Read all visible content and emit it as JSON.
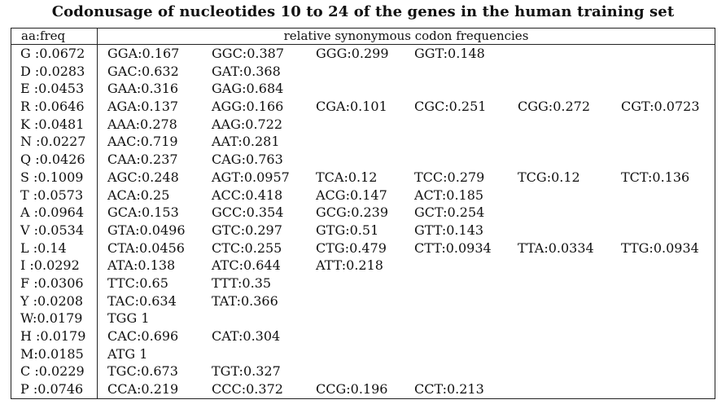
{
  "title": "Codonusage of nucleotides 10 to 24 of the genes in the human training set",
  "headers": {
    "left": "aa:freq",
    "right": "relative synonymous codon frequencies"
  },
  "rows": [
    {
      "aa": "G :0.0672",
      "codons": [
        "GGA:0.167",
        "GGC:0.387",
        "GGG:0.299",
        "GGT:0.148"
      ]
    },
    {
      "aa": "D :0.0283",
      "codons": [
        "GAC:0.632",
        "GAT:0.368"
      ]
    },
    {
      "aa": "E :0.0453",
      "codons": [
        "GAA:0.316",
        "GAG:0.684"
      ]
    },
    {
      "aa": "R :0.0646",
      "codons": [
        "AGA:0.137",
        "AGG:0.166",
        "CGA:0.101",
        "CGC:0.251",
        "CGG:0.272",
        "CGT:0.0723"
      ]
    },
    {
      "aa": "K :0.0481",
      "codons": [
        "AAA:0.278",
        "AAG:0.722"
      ]
    },
    {
      "aa": "N :0.0227",
      "codons": [
        "AAC:0.719",
        "AAT:0.281"
      ]
    },
    {
      "aa": "Q :0.0426",
      "codons": [
        "CAA:0.237",
        "CAG:0.763"
      ]
    },
    {
      "aa": "S :0.1009",
      "codons": [
        "AGC:0.248",
        "AGT:0.0957",
        "TCA:0.12",
        "TCC:0.279",
        "TCG:0.12",
        "TCT:0.136"
      ]
    },
    {
      "aa": "T :0.0573",
      "codons": [
        "ACA:0.25",
        "ACC:0.418",
        "ACG:0.147",
        "ACT:0.185"
      ]
    },
    {
      "aa": "A :0.0964",
      "codons": [
        "GCA:0.153",
        "GCC:0.354",
        "GCG:0.239",
        "GCT:0.254"
      ]
    },
    {
      "aa": "V :0.0534",
      "codons": [
        "GTA:0.0496",
        "GTC:0.297",
        "GTG:0.51",
        "GTT:0.143"
      ]
    },
    {
      "aa": "L :0.14",
      "codons": [
        "CTA:0.0456",
        "CTC:0.255",
        "CTG:0.479",
        "CTT:0.0934",
        "TTA:0.0334",
        "TTG:0.0934"
      ]
    },
    {
      "aa": "I :0.0292",
      "codons": [
        "ATA:0.138",
        "ATC:0.644",
        "ATT:0.218"
      ]
    },
    {
      "aa": "F :0.0306",
      "codons": [
        "TTC:0.65",
        "TTT:0.35"
      ]
    },
    {
      "aa": "Y :0.0208",
      "codons": [
        "TAC:0.634",
        "TAT:0.366"
      ]
    },
    {
      "aa": "W:0.0179",
      "codons": [
        "TGG 1"
      ]
    },
    {
      "aa": "H :0.0179",
      "codons": [
        "CAC:0.696",
        "CAT:0.304"
      ]
    },
    {
      "aa": "M:0.0185",
      "codons": [
        "ATG 1"
      ]
    },
    {
      "aa": "C :0.0229",
      "codons": [
        "TGC:0.673",
        "TGT:0.327"
      ]
    },
    {
      "aa": "P :0.0746",
      "codons": [
        "CCA:0.219",
        "CCC:0.372",
        "CCG:0.196",
        "CCT:0.213"
      ]
    }
  ]
}
